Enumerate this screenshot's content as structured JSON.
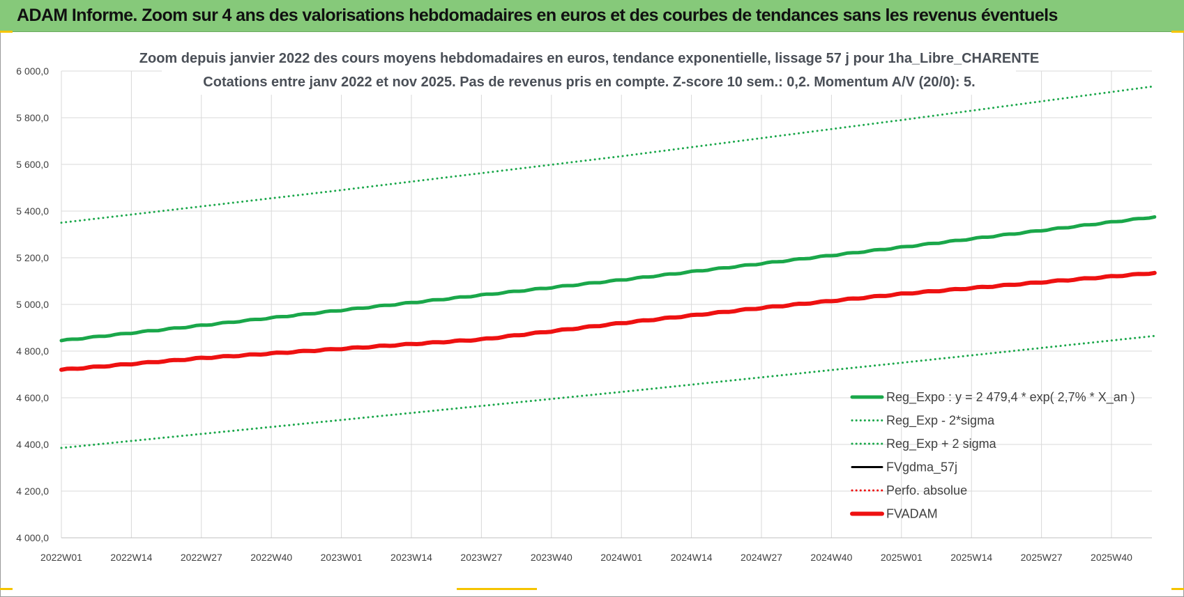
{
  "banner": {
    "title": "ADAM Informe. Zoom sur 4 ans des valorisations hebdomadaires en euros et des courbes de tendances sans les revenus éventuels"
  },
  "colors": {
    "banner_bg": "#86c97a",
    "accent_yellow": "#f5c400",
    "green": "#1aa74a",
    "red": "#ee1111",
    "black": "#000000"
  },
  "chart_data": {
    "type": "line",
    "title": "Zoom depuis janvier 2022 des cours moyens hebdomadaires en euros, tendance exponentielle, lissage 57 j pour 1ha_Libre_CHARENTE",
    "subtitle": "Cotations entre janv 2022 et nov 2025. Pas de revenus pris en compte. Z-score 10 sem.: 0,2. Momentum A/V (20/0): 5.",
    "xlabel": "",
    "ylabel": "",
    "ylim": [
      4000,
      6000
    ],
    "y_ticks": [
      "4 000,0",
      "4 200,0",
      "4 400,0",
      "4 600,0",
      "4 800,0",
      "5 000,0",
      "5 200,0",
      "5 400,0",
      "5 600,0",
      "5 800,0",
      "6 000,0"
    ],
    "x_ticks": [
      "2022W01",
      "2022W14",
      "2022W27",
      "2022W40",
      "2023W01",
      "2023W14",
      "2023W27",
      "2023W40",
      "2024W01",
      "2024W14",
      "2024W27",
      "2024W40",
      "2025W01",
      "2025W14",
      "2025W27",
      "2025W40"
    ],
    "x_range_weeks": [
      0,
      203
    ],
    "grid": true,
    "legend_position": "bottom-right",
    "series": [
      {
        "name": "Reg_Expo : y = 2 479,4 * exp( 2,7% *  X_an )",
        "color": "#1aa74a",
        "style": "solid",
        "width": 5,
        "x_weeks": [
          0,
          52,
          104,
          156,
          203
        ],
        "values": [
          4845,
          4975,
          5105,
          5245,
          5375
        ]
      },
      {
        "name": "Reg_Exp - 2*sigma",
        "color": "#1aa74a",
        "style": "dotted",
        "width": 3,
        "x_weeks": [
          0,
          52,
          104,
          156,
          203
        ],
        "values": [
          4385,
          4505,
          4625,
          4750,
          4865
        ]
      },
      {
        "name": "Reg_Exp + 2 sigma",
        "color": "#1aa74a",
        "style": "dotted",
        "width": 3,
        "x_weeks": [
          0,
          52,
          104,
          156,
          203
        ],
        "values": [
          5350,
          5490,
          5635,
          5790,
          5935
        ]
      },
      {
        "name": "FVgdma_57j",
        "color": "#000000",
        "style": "solid",
        "width": 3,
        "x_weeks": [],
        "values": []
      },
      {
        "name": "Perfo. absolue",
        "color": "#ee1111",
        "style": "dotted",
        "width": 3,
        "x_weeks": [],
        "values": []
      },
      {
        "name": "FVADAM",
        "color": "#ee1111",
        "style": "solid",
        "width": 6,
        "x_weeks": [
          0,
          26,
          52,
          78,
          104,
          130,
          156,
          182,
          203
        ],
        "values": [
          4720,
          4770,
          4810,
          4850,
          4920,
          4985,
          5045,
          5095,
          5135
        ]
      }
    ]
  }
}
